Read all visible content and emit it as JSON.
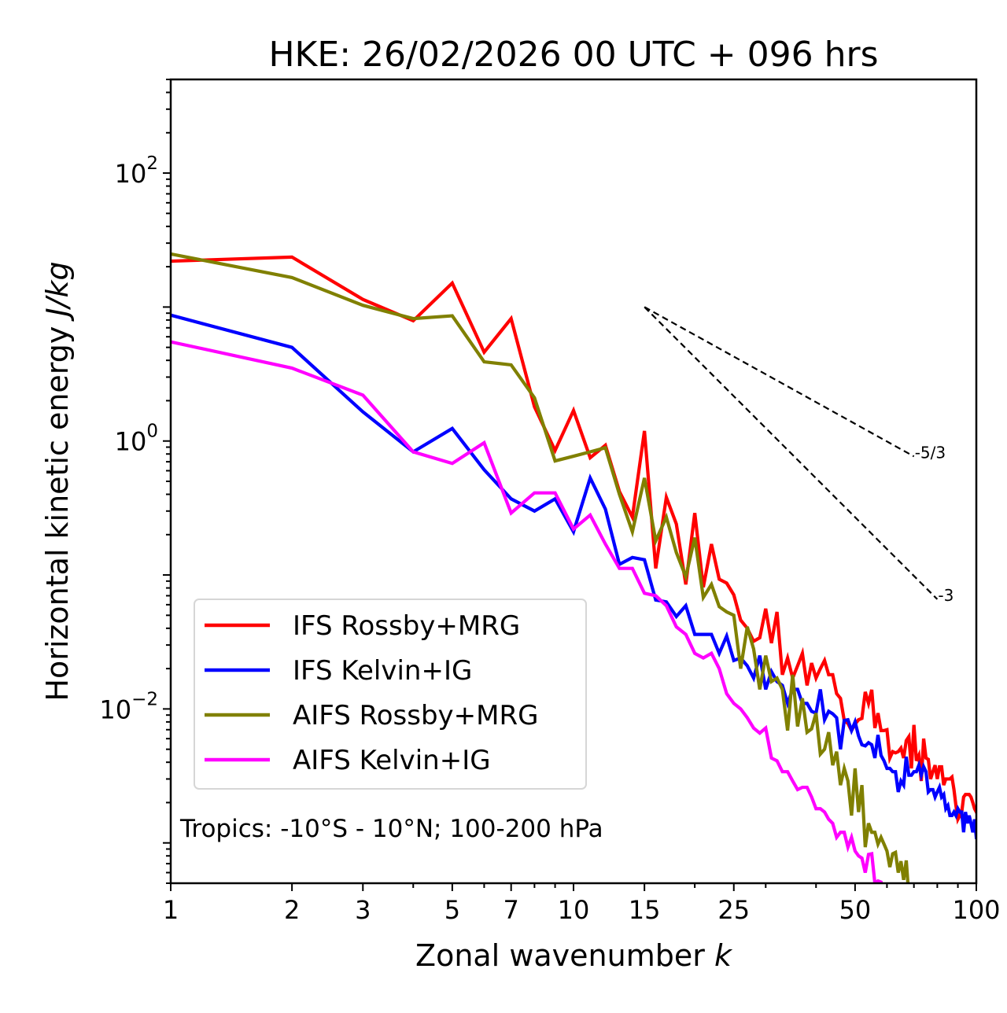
{
  "chart_data": {
    "type": "line",
    "title": "HKE: 26/02/2026 00 UTC + 096 hrs",
    "xlabel": "Zonal wavenumber",
    "xlabel_var": "k",
    "ylabel": "Horizontal kinetic energy",
    "ylabel_units": "J/kg",
    "xscale": "log",
    "yscale": "log",
    "xlim": [
      1,
      100
    ],
    "ylim": [
      0.0005,
      500
    ],
    "grid": false,
    "legend_position": "lower-left",
    "x_ticks": [
      {
        "value": 1,
        "label": "1"
      },
      {
        "value": 2,
        "label": "2"
      },
      {
        "value": 3,
        "label": "3"
      },
      {
        "value": 5,
        "label": "5"
      },
      {
        "value": 7,
        "label": "7"
      },
      {
        "value": 10,
        "label": "10"
      },
      {
        "value": 15,
        "label": "15"
      },
      {
        "value": 25,
        "label": "25"
      },
      {
        "value": 50,
        "label": "50"
      },
      {
        "value": 100,
        "label": "100"
      }
    ],
    "x_minor_ticks": [
      4,
      6,
      8,
      9,
      20,
      30,
      40,
      60,
      70,
      80,
      90
    ],
    "y_ticks": [
      {
        "value": 100,
        "base": "10",
        "exp": "2"
      },
      {
        "value": 1,
        "base": "10",
        "exp": "0"
      },
      {
        "value": 0.01,
        "base": "10",
        "exp": "−2"
      }
    ],
    "y_unlabeled_major_ticks": [
      0.001,
      0.1,
      10
    ],
    "annotation": "Tropics: -10°S - 10°N; 100-200 hPa",
    "reference_lines": [
      {
        "label": "-5/3",
        "slope": -1.6667,
        "k_start": 15,
        "k_end": 70,
        "e_start": 10
      },
      {
        "label": "-3",
        "slope": -3,
        "k_start": 15,
        "k_end": 80,
        "e_start": 10
      }
    ],
    "series": [
      {
        "name": "IFS Rossby+MRG",
        "color": "#ff0000",
        "k_start": 1,
        "values": [
          22.0,
          23.6,
          11.4,
          7.9,
          15.1,
          4.6,
          8.2,
          1.8,
          0.85,
          1.69,
          0.75,
          0.93,
          0.42,
          0.27,
          1.19,
          0.112,
          0.38,
          0.24,
          0.085,
          0.29,
          0.081,
          0.17,
          0.093,
          0.087,
          0.071,
          0.046,
          0.04,
          0.032,
          0.034,
          0.056,
          0.031,
          0.053,
          0.018,
          0.024,
          0.017,
          0.021,
          0.026,
          0.015,
          0.022,
          0.017,
          0.02,
          0.023,
          0.018,
          0.018,
          0.013,
          0.012,
          0.0082,
          0.0078,
          0.0069,
          0.0077,
          0.0083,
          0.0085,
          0.0134,
          0.011,
          0.0139,
          0.0072,
          0.0093,
          0.0069,
          0.0069,
          0.007,
          0.0043,
          0.0048,
          0.0047,
          0.0048,
          0.0051,
          0.0043,
          0.0058,
          0.0062,
          0.0036,
          0.0076,
          0.0041,
          0.0045,
          0.0029,
          0.006,
          0.0043,
          0.0042,
          0.003,
          0.0034,
          0.0038,
          0.003,
          0.0037,
          0.0037,
          0.0027,
          0.003,
          0.003,
          0.003,
          0.0031,
          0.0025,
          0.0019,
          0.0015,
          0.0016,
          0.0017,
          0.0022,
          0.0023,
          0.0023,
          0.0023,
          0.0022,
          0.002,
          0.0018,
          0.0017
        ]
      },
      {
        "name": "IFS Kelvin+IG",
        "color": "#0000ff",
        "k_start": 1,
        "values": [
          8.7,
          5.0,
          1.65,
          0.83,
          1.24,
          0.61,
          0.37,
          0.3,
          0.37,
          0.21,
          0.53,
          0.31,
          0.12,
          0.135,
          0.13,
          0.065,
          0.063,
          0.049,
          0.059,
          0.036,
          0.036,
          0.036,
          0.026,
          0.035,
          0.023,
          0.024,
          0.021,
          0.017,
          0.025,
          0.014,
          0.019,
          0.016,
          0.015,
          0.011,
          0.014,
          0.014,
          0.011,
          0.011,
          0.0096,
          0.0093,
          0.014,
          0.0083,
          0.0096,
          0.0092,
          0.0086,
          0.005,
          0.0082,
          0.0083,
          0.0069,
          0.008,
          0.0063,
          0.0054,
          0.0053,
          0.0056,
          0.0054,
          0.0043,
          0.0064,
          0.0045,
          0.0041,
          0.0036,
          0.0036,
          0.0034,
          0.0034,
          0.0024,
          0.0029,
          0.0027,
          0.0044,
          0.0032,
          0.0032,
          0.0034,
          0.0034,
          0.0038,
          0.0032,
          0.0037,
          0.0034,
          0.0024,
          0.0025,
          0.0025,
          0.0022,
          0.0024,
          0.0026,
          0.0022,
          0.0023,
          0.0018,
          0.0019,
          0.0016,
          0.0016,
          0.0017,
          0.0016,
          0.0018,
          0.0017,
          0.0017,
          0.0012,
          0.0017,
          0.0014,
          0.0016,
          0.0014,
          0.0012,
          0.0015,
          0.0011
        ]
      },
      {
        "name": "AIFS Rossby+MRG",
        "color": "#808000",
        "k_start": 1,
        "values": [
          24.9,
          16.6,
          10.3,
          8.2,
          8.6,
          3.9,
          3.7,
          2.1,
          0.71,
          0.77,
          0.83,
          0.89,
          0.4,
          0.21,
          0.53,
          0.18,
          0.27,
          0.147,
          0.097,
          0.19,
          0.068,
          0.085,
          0.058,
          0.053,
          0.05,
          0.02,
          0.041,
          0.028,
          0.014,
          0.025,
          0.016,
          0.017,
          0.014,
          0.0069,
          0.018,
          0.0074,
          0.012,
          0.0067,
          0.0071,
          0.0093,
          0.0046,
          0.005,
          0.0067,
          0.0038,
          0.0048,
          0.0027,
          0.0036,
          0.0029,
          0.0016,
          0.0036,
          0.0017,
          0.0027,
          0.00093,
          0.0014,
          0.0012,
          0.0012,
          0.00098,
          0.0011,
          0.00098,
          0.00087,
          0.00066,
          0.00083,
          0.00085,
          0.0006,
          0.00073,
          0.00053,
          0.00074,
          0.0004
        ]
      },
      {
        "name": "AIFS Kelvin+IG",
        "color": "#ff00ff",
        "k_start": 1,
        "values": [
          5.5,
          3.5,
          2.2,
          0.83,
          0.68,
          0.97,
          0.29,
          0.41,
          0.41,
          0.22,
          0.28,
          0.17,
          0.112,
          0.112,
          0.073,
          0.07,
          0.059,
          0.041,
          0.036,
          0.026,
          0.024,
          0.026,
          0.02,
          0.013,
          0.011,
          0.01,
          0.0086,
          0.0072,
          0.0066,
          0.0072,
          0.0043,
          0.0041,
          0.0034,
          0.0034,
          0.0029,
          0.0025,
          0.0026,
          0.0026,
          0.0022,
          0.0018,
          0.0018,
          0.0017,
          0.0015,
          0.0014,
          0.0011,
          0.0012,
          0.0012,
          0.00093,
          0.0011,
          0.00087,
          0.0008,
          0.00077,
          0.0006,
          0.00082,
          0.00083,
          0.0005,
          0.00052,
          0.00051,
          0.0004
        ]
      }
    ]
  }
}
